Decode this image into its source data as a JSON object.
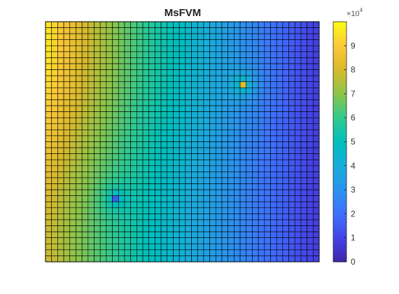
{
  "chart_data": {
    "type": "heatmap",
    "title": "MsFVM",
    "grid": {
      "cols": 45,
      "rows": 40,
      "cell_edges": true
    },
    "x_axis": {
      "visible": false
    },
    "y_axis": {
      "visible": false
    },
    "colormap": "parula",
    "colorbar": {
      "location": "right",
      "range": [
        0,
        100000
      ],
      "ticks": [
        0,
        1,
        2,
        3,
        4,
        5,
        6,
        7,
        8,
        9
      ],
      "multiplier_base": "×10",
      "multiplier_exponent": "4"
    },
    "field": {
      "description_values_in_data_units": true,
      "value_left_edge": 97000,
      "value_right_edge": 8000,
      "sink": {
        "col": 11,
        "row": 29,
        "value": 15000
      },
      "source": {
        "col": 32,
        "row": 10,
        "value": 82000
      }
    }
  }
}
